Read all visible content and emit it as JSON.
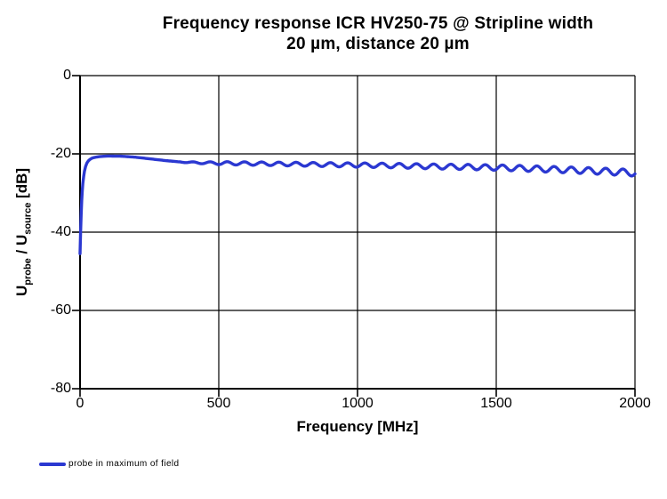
{
  "title": {
    "text": "Frequency response ICR HV250-75 @ Stripline  width\n20 µm, distance 20 µm"
  },
  "chart_data": {
    "type": "line",
    "title": "Frequency response ICR HV250-75 @ Stripline width 20 µm, distance 20 µm",
    "xlabel": "Frequency [MHz]",
    "ylabel": "U_probe / U_source [dB]",
    "ylabel_parts": {
      "u1": "U",
      "sub1": "probe",
      "mid": " / U",
      "sub2": "source",
      "end": " [dB]"
    },
    "xlim": [
      0,
      2000
    ],
    "ylim": [
      -80,
      0
    ],
    "x_ticks": [
      0,
      500,
      1000,
      1500,
      2000
    ],
    "y_ticks": [
      0,
      -20,
      -40,
      -60,
      -80
    ],
    "x_tick_labels": [
      "0",
      "500",
      "1000",
      "1500",
      "2000"
    ],
    "y_tick_labels": [
      "0",
      "-20",
      "-40",
      "-60",
      "-80"
    ],
    "grid": true,
    "grid_color": "#000000",
    "legend_position": "bottom-left",
    "series": [
      {
        "name": "probe in maximum of field",
        "color": "#2b38d1",
        "rise_points": [
          [
            0,
            -45.5
          ],
          [
            2,
            -40.0
          ],
          [
            4,
            -35.5
          ],
          [
            6,
            -32.0
          ],
          [
            8,
            -29.5
          ],
          [
            10,
            -27.6
          ],
          [
            13,
            -25.8
          ],
          [
            16,
            -24.4
          ],
          [
            20,
            -23.2
          ],
          [
            25,
            -22.3
          ],
          [
            30,
            -21.8
          ],
          [
            36,
            -21.4
          ],
          [
            43,
            -21.1
          ],
          [
            50,
            -20.95
          ],
          [
            60,
            -20.8
          ],
          [
            70,
            -20.7
          ],
          [
            85,
            -20.6
          ],
          [
            100,
            -20.55
          ]
        ],
        "trend_points": [
          [
            100,
            -20.55
          ],
          [
            150,
            -20.6
          ],
          [
            200,
            -20.85
          ],
          [
            250,
            -21.25
          ],
          [
            300,
            -21.65
          ],
          [
            350,
            -22.0
          ],
          [
            400,
            -22.2
          ],
          [
            450,
            -22.3
          ],
          [
            500,
            -22.37
          ],
          [
            600,
            -22.45
          ],
          [
            700,
            -22.55
          ],
          [
            800,
            -22.65
          ],
          [
            900,
            -22.75
          ],
          [
            1000,
            -22.85
          ],
          [
            1100,
            -22.95
          ],
          [
            1200,
            -23.1
          ],
          [
            1300,
            -23.25
          ],
          [
            1400,
            -23.35
          ],
          [
            1500,
            -23.5
          ],
          [
            1600,
            -23.7
          ],
          [
            1700,
            -23.95
          ],
          [
            1800,
            -24.2
          ],
          [
            1900,
            -24.5
          ],
          [
            2000,
            -24.85
          ]
        ],
        "ripple": {
          "start_mhz": 360,
          "full_mhz": 515,
          "period_mhz": 62,
          "amp_onset_db": 0.08,
          "amp_full_db": 0.4,
          "amp_end_db": 0.85
        }
      }
    ]
  },
  "legend": {
    "items": [
      {
        "label": "probe in maximum of field",
        "color": "#2b38d1"
      }
    ]
  }
}
